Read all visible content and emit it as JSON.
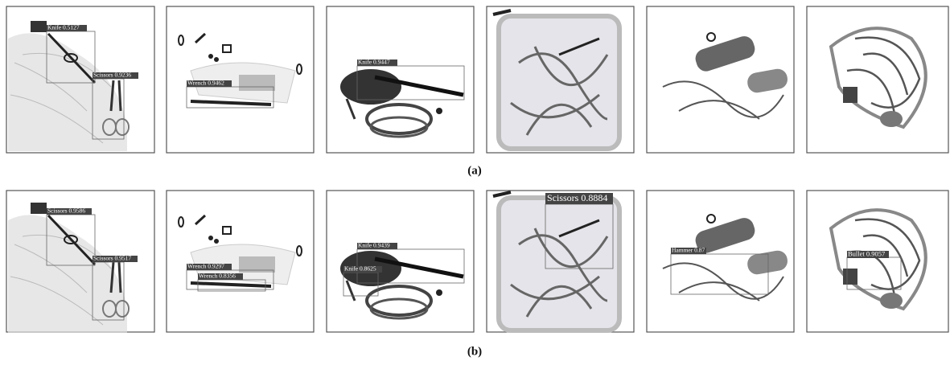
{
  "rows": [
    {
      "caption": "(a)",
      "panels": [
        {
          "detections": [
            {
              "label": "Knife 0.5127"
            },
            {
              "label": "Scissors 0.9236"
            }
          ]
        },
        {
          "detections": [
            {
              "label": "Wrench 0.9462"
            }
          ]
        },
        {
          "detections": [
            {
              "label": "Knife 0.9447"
            }
          ]
        },
        {
          "detections": []
        },
        {
          "detections": []
        },
        {
          "detections": []
        }
      ]
    },
    {
      "caption": "(b)",
      "panels": [
        {
          "detections": [
            {
              "label": "Scissors 0.9586"
            },
            {
              "label": "Scissors 0.9517"
            }
          ]
        },
        {
          "detections": [
            {
              "label": "Wrench 0.9297"
            },
            {
              "label": "Wrench 0.8356"
            }
          ]
        },
        {
          "detections": [
            {
              "label": "Knife 0.9439"
            },
            {
              "label": "Knife 0.8625"
            }
          ]
        },
        {
          "detections": [
            {
              "label": "Scissors 0.8884"
            }
          ]
        },
        {
          "detections": [
            {
              "label": "Hammer 0.87"
            }
          ]
        },
        {
          "detections": [
            {
              "label": "Bullet 0.9057"
            }
          ]
        }
      ]
    }
  ]
}
